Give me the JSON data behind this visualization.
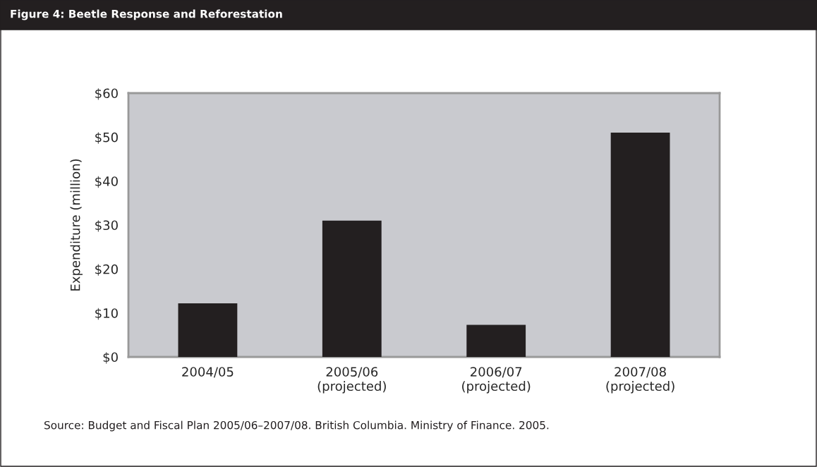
{
  "chart_data": {
    "type": "bar",
    "title": "Figure 4: Beetle Response and Reforestation",
    "ylabel": "Expenditure (million)",
    "categories": [
      "2004/05",
      "2005/06\n(projected)",
      "2006/07\n(projected)",
      "2007/08\n(projected)"
    ],
    "values": [
      12.2,
      31,
      7.3,
      51
    ],
    "color": "#231f20",
    "ylim": [
      0,
      60
    ],
    "yticks": [
      {
        "value": 0,
        "label": "$0"
      },
      {
        "value": 10,
        "label": "$10"
      },
      {
        "value": 20,
        "label": "$20"
      },
      {
        "value": 30,
        "label": "$30"
      },
      {
        "value": 40,
        "label": "$40"
      },
      {
        "value": 50,
        "label": "$50"
      },
      {
        "value": 60,
        "label": "$60"
      }
    ],
    "annotations": [
      "Source: Budget and Fiscal Plan 2005/06–2007/08. British Columbia. Ministry of Finance. 2005."
    ]
  }
}
